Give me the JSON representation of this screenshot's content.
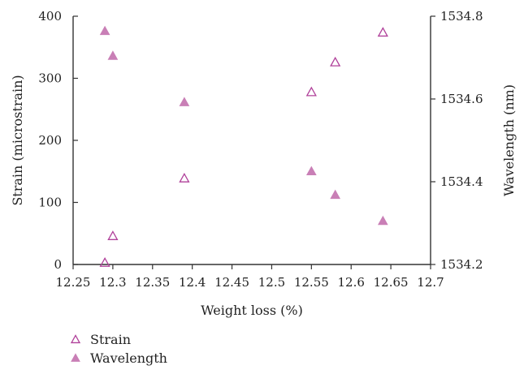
{
  "chart_data": {
    "type": "scatter",
    "title": "",
    "xlabel": "Weight loss (%)",
    "ylabel_left": "Strain (microstrain)",
    "ylabel_right": "Wavelength (nm)",
    "xlim": [
      12.25,
      12.7
    ],
    "ylim_left": [
      0,
      400
    ],
    "ylim_right": [
      1534.2,
      1534.8
    ],
    "x_ticks": [
      "12.25",
      "12.3",
      "12.35",
      "12.4",
      "12.45",
      "12.5",
      "12.55",
      "12.6",
      "12.65",
      "12.7"
    ],
    "y_left_ticks": [
      "0",
      "100",
      "200",
      "300",
      "400"
    ],
    "y_right_ticks": [
      "1534.2",
      "1534.4",
      "1534.6",
      "1534.8"
    ],
    "grid": false,
    "legend_position": "bottom-left",
    "series": [
      {
        "name": "Strain",
        "axis": "left",
        "marker": "triangle-open",
        "color": "#b0409a",
        "points": [
          {
            "x": 12.29,
            "y": 2
          },
          {
            "x": 12.3,
            "y": 45
          },
          {
            "x": 12.39,
            "y": 138
          },
          {
            "x": 12.55,
            "y": 277
          },
          {
            "x": 12.58,
            "y": 325
          },
          {
            "x": 12.64,
            "y": 373
          }
        ]
      },
      {
        "name": "Wavelength",
        "axis": "right",
        "marker": "triangle-filled",
        "color": "#c97fb6",
        "points": [
          {
            "x": 12.29,
            "y": 1534.763
          },
          {
            "x": 12.3,
            "y": 1534.703
          },
          {
            "x": 12.39,
            "y": 1534.591
          },
          {
            "x": 12.55,
            "y": 1534.424
          },
          {
            "x": 12.58,
            "y": 1534.367
          },
          {
            "x": 12.64,
            "y": 1534.304
          }
        ]
      }
    ]
  }
}
